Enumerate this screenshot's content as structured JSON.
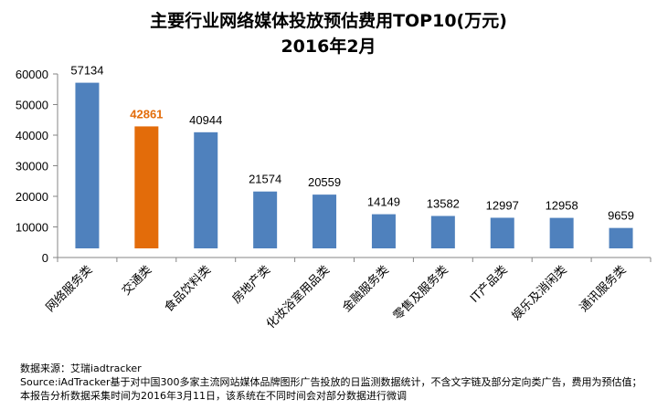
{
  "chart_data": {
    "type": "bar",
    "title": "主要行业网络媒体投放预估费用TOP10(万元)",
    "subtitle": "2016年2月",
    "categories": [
      "网络服务类",
      "交通类",
      "食品饮料类",
      "房地产类",
      "化妆浴室用品类",
      "金融服务类",
      "零售及服务类",
      "IT产品类",
      "娱乐及消闲类",
      "通讯服务类"
    ],
    "values": [
      57134,
      42861,
      40944,
      21574,
      20559,
      14149,
      13582,
      12997,
      12958,
      9659
    ],
    "highlight_index": 1,
    "ylim": [
      0,
      60000
    ],
    "yticks": [
      0,
      10000,
      20000,
      30000,
      40000,
      50000,
      60000
    ],
    "grid": false,
    "colors": {
      "bar": "#4f81bd",
      "highlight": "#e36c0a",
      "axis": "#868686"
    },
    "xlabel": "",
    "ylabel": ""
  },
  "notes": {
    "source_label": "数据来源：艾瑞iadtracker",
    "line1": "Source:iAdTracker基于对中国300多家主流网站媒体品牌图形广告投放的日监测数据统计，不含文字链及部分定向类广告，费用为预估值；本报告分析数据采集时间为2016年3月11日，该系统在不同时间会对部分数据进行微调"
  }
}
